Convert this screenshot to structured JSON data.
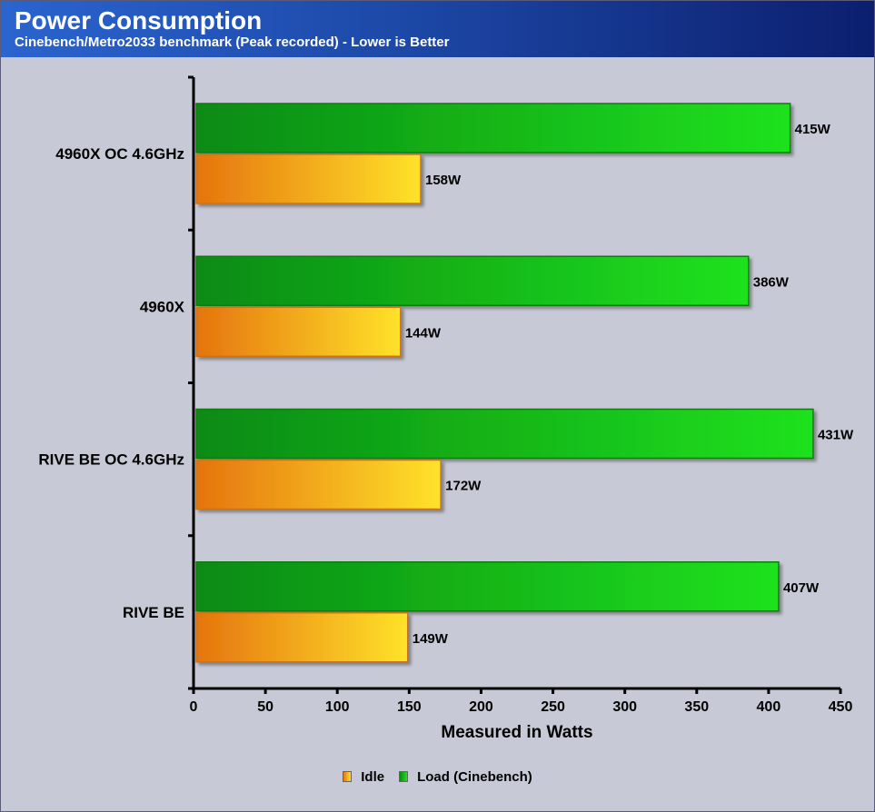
{
  "header": {
    "title": "Power Consumption",
    "subtitle": "Cinebench/Metro2033 benchmark (Peak recorded) - Lower is Better"
  },
  "chart_data": {
    "type": "bar",
    "orientation": "horizontal",
    "categories": [
      "4960X OC 4.6GHz",
      "4960X",
      "RIVE BE OC 4.6GHz",
      "RIVE BE"
    ],
    "series": [
      {
        "name": "Load (Cinebench)",
        "values": [
          415,
          386,
          431,
          407
        ],
        "labels": [
          "415W",
          "386W",
          "431W",
          "407W"
        ],
        "color": "#1fc01f"
      },
      {
        "name": "Idle",
        "values": [
          158,
          144,
          172,
          149
        ],
        "labels": [
          "158W",
          "144W",
          "172W",
          "149W"
        ],
        "color": "#f2a21a"
      }
    ],
    "xlabel": "Measured in Watts",
    "ylabel": "",
    "xlim": [
      0,
      450
    ],
    "xticks": [
      "0",
      "50",
      "100",
      "150",
      "200",
      "250",
      "300",
      "350",
      "400",
      "450"
    ],
    "grid": false,
    "legend_position": "bottom"
  },
  "legend": [
    {
      "label": "Idle",
      "color": "#f2a21a"
    },
    {
      "label": "Load (Cinebench)",
      "color": "#1fc01f"
    }
  ]
}
